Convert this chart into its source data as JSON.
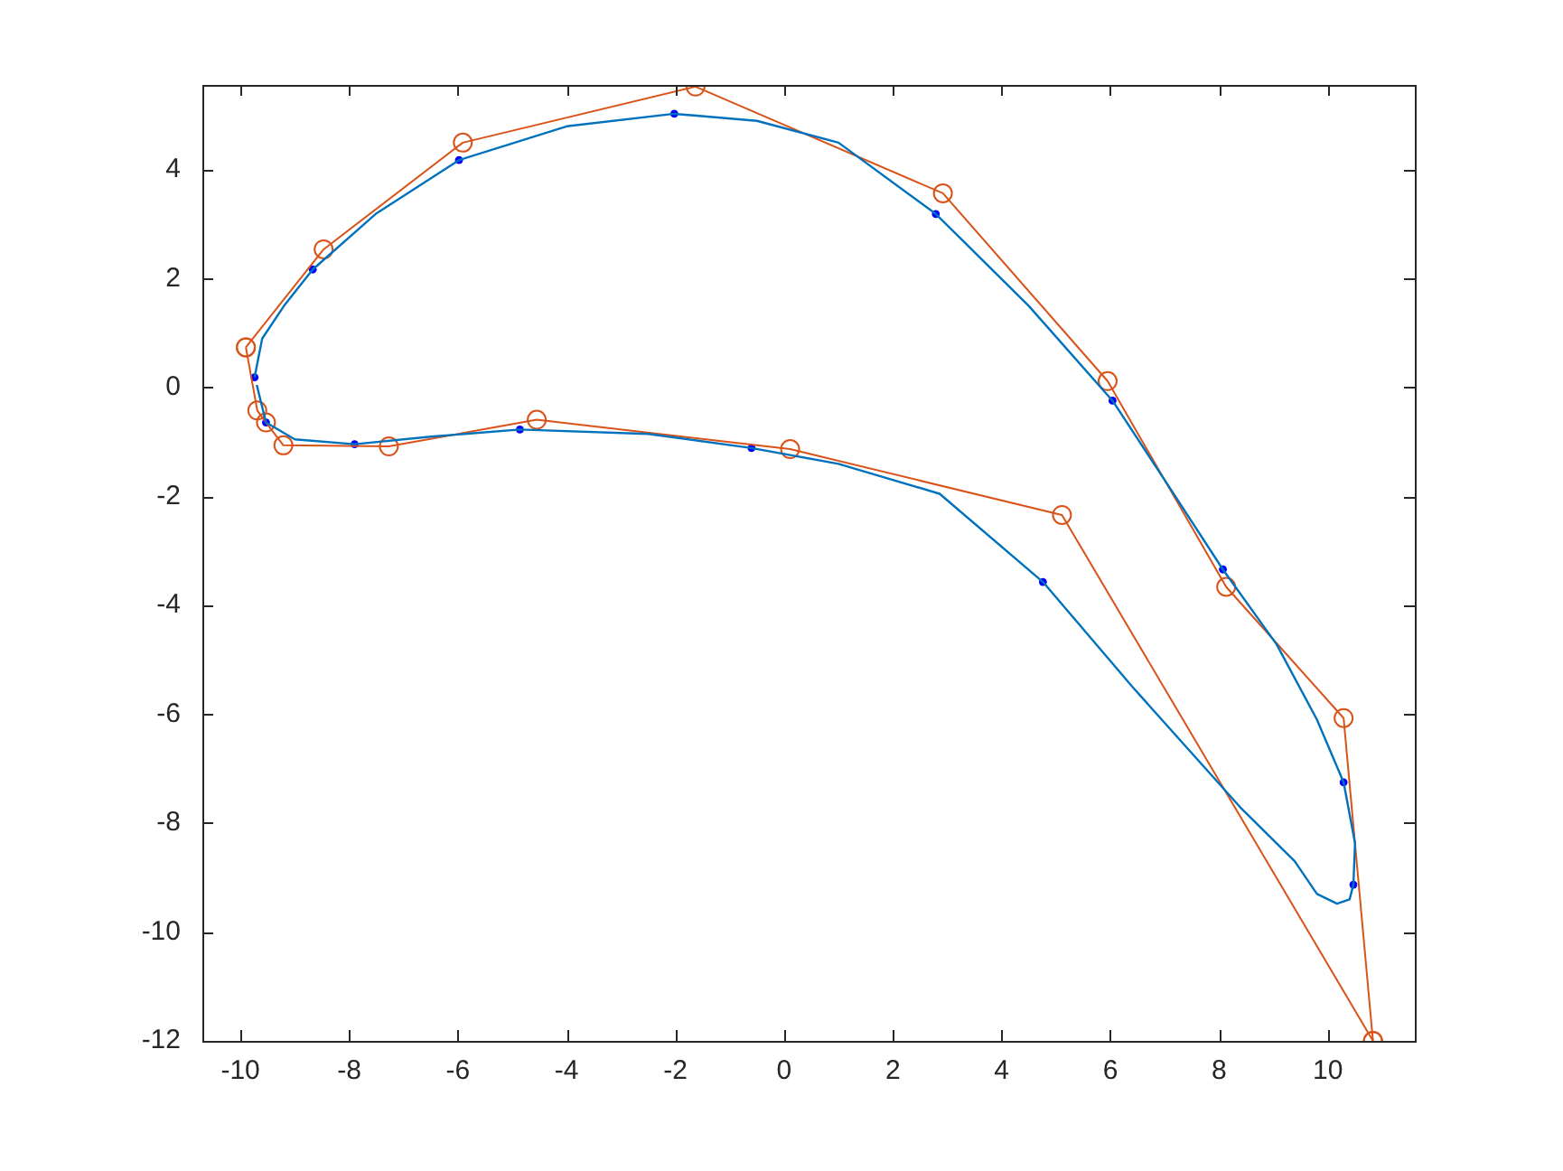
{
  "chart_data": {
    "type": "line",
    "xlim": [
      -10.7,
      11.6
    ],
    "ylim": [
      -12,
      5.56
    ],
    "xticks": [
      -10,
      -8,
      -6,
      -4,
      -2,
      0,
      2,
      4,
      6,
      8,
      10
    ],
    "yticks": [
      -12,
      -10,
      -8,
      -6,
      -4,
      -2,
      0,
      2,
      4
    ],
    "grid": false,
    "legend": false,
    "series": [
      {
        "color": "#0072bd",
        "marker": "none",
        "x": [
          -9.74,
          -9.6,
          -9.2,
          -8.67,
          -7.5,
          -5.98,
          -4,
          -2.02,
          -0.5,
          1,
          2.79,
          4.5,
          6.04,
          7,
          8.07,
          9.06,
          9.8,
          10.29,
          10.5,
          10.47,
          10.4,
          10.17,
          9.8,
          9.39,
          8.39,
          6.4,
          4.76,
          2.86,
          1,
          -0.6,
          -2.5,
          -4.86,
          -6.5,
          -7.9,
          -9,
          -9.53,
          -9.7
        ],
        "values": [
          0.19,
          0.9,
          1.5,
          2.17,
          3.2,
          4.18,
          4.8,
          5.03,
          4.9,
          4.5,
          3.19,
          1.5,
          -0.24,
          -1.7,
          -3.34,
          -4.72,
          -6.1,
          -7.25,
          -8.37,
          -9.13,
          -9.4,
          -9.48,
          -9.3,
          -8.7,
          -7.71,
          -5.49,
          -3.57,
          -1.95,
          -1.4,
          -1.11,
          -0.85,
          -0.77,
          -0.9,
          -1.04,
          -0.95,
          -0.64,
          0.05
        ]
      },
      {
        "color": "#d95319",
        "marker": "circle",
        "x": [
          10.83,
          10.29,
          8.13,
          5.95,
          2.92,
          -1.63,
          -5.91,
          -8.47,
          -9.9
        ],
        "values": [
          -12,
          -6.07,
          -3.66,
          0.12,
          3.57,
          5.53,
          4.5,
          2.54,
          0.74
        ]
      },
      {
        "color": "#d95319",
        "marker": "circle",
        "x": [
          -9.9,
          -9.69,
          -9.53,
          -9.21,
          -7.27,
          -4.55,
          0.11,
          5.11,
          10.83
        ],
        "values": [
          0.74,
          -0.42,
          -0.64,
          -1.06,
          -1.08,
          -0.59,
          -1.13,
          -2.34,
          -12
        ]
      },
      {
        "type": "scatter",
        "color": "#0000ff",
        "marker": "circle",
        "x": [
          -9.74,
          -9.53,
          -8.67,
          -5.98,
          -2.02,
          -7.9,
          -4.86,
          -0.6,
          2.79,
          6.04,
          8.07,
          4.76,
          10.29,
          10.47
        ],
        "values": [
          0.19,
          -0.64,
          2.17,
          4.18,
          5.03,
          -1.04,
          -0.77,
          -1.11,
          3.19,
          -0.24,
          -3.34,
          -3.57,
          -7.25,
          -9.13
        ]
      }
    ]
  }
}
